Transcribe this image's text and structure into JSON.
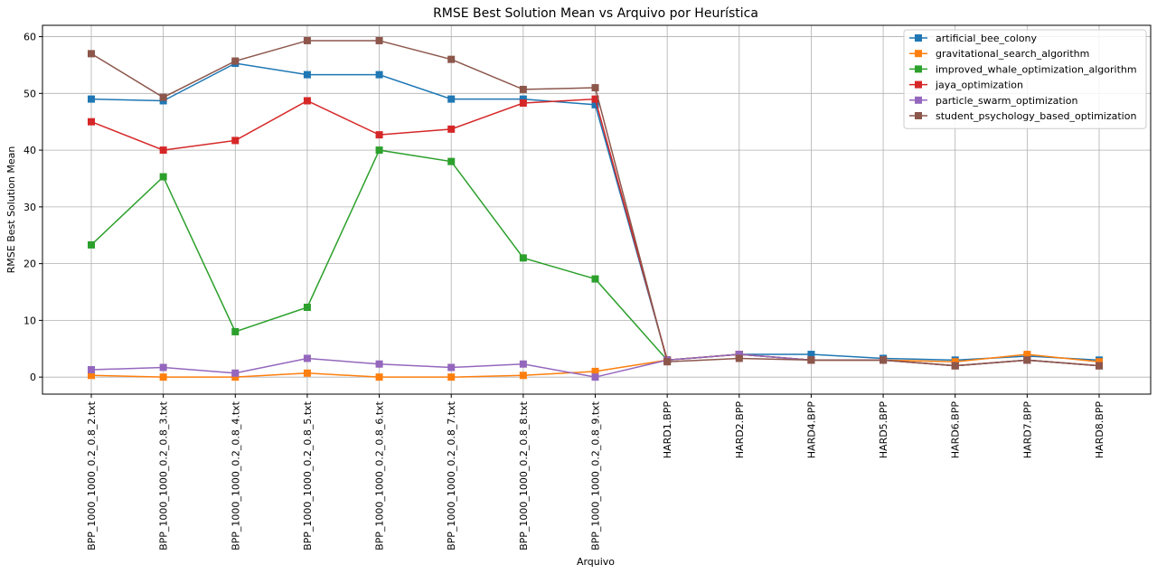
{
  "chart_data": {
    "type": "line",
    "title": "RMSE Best Solution Mean vs Arquivo por Heurística",
    "xlabel": "Arquivo",
    "ylabel": "RMSE Best Solution Mean",
    "ylim": [
      -3,
      62
    ],
    "yticks": [
      0,
      10,
      20,
      30,
      40,
      50,
      60
    ],
    "grid": true,
    "legend_position": "top-right",
    "categories": [
      "BPP_1000_1000_0.2_0.8_2.txt",
      "BPP_1000_1000_0.2_0.8_3.txt",
      "BPP_1000_1000_0.2_0.8_4.txt",
      "BPP_1000_1000_0.2_0.8_5.txt",
      "BPP_1000_1000_0.2_0.8_6.txt",
      "BPP_1000_1000_0.2_0.8_7.txt",
      "BPP_1000_1000_0.2_0.8_8.txt",
      "BPP_1000_1000_0.2_0.8_9.txt",
      "HARD1.BPP",
      "HARD2.BPP",
      "HARD4.BPP",
      "HARD5.BPP",
      "HARD6.BPP",
      "HARD7.BPP",
      "HARD8.BPP"
    ],
    "series": [
      {
        "name": "artificial_bee_colony",
        "color": "#1f77b4",
        "values": [
          49.0,
          48.7,
          55.3,
          53.3,
          53.3,
          49.0,
          49.0,
          48.0,
          3.0,
          4.0,
          4.0,
          3.3,
          3.0,
          3.7,
          3.0
        ]
      },
      {
        "name": "gravitational_search_algorithm",
        "color": "#ff7f0e",
        "values": [
          0.3,
          0.0,
          0.0,
          0.7,
          0.0,
          0.0,
          0.3,
          1.0,
          3.0,
          4.0,
          3.0,
          3.0,
          2.7,
          4.0,
          2.7
        ]
      },
      {
        "name": "improved_whale_optimization_algorithm",
        "color": "#2ca02c",
        "values": [
          23.3,
          35.3,
          8.0,
          12.3,
          40.0,
          38.0,
          21.0,
          17.3,
          3.0,
          4.0,
          3.0,
          3.0,
          2.0,
          3.0,
          2.0
        ]
      },
      {
        "name": "jaya_optimization",
        "color": "#d62728",
        "values": [
          45.0,
          40.0,
          41.7,
          48.7,
          42.7,
          43.7,
          48.3,
          49.0,
          3.0,
          4.0,
          3.0,
          3.0,
          2.0,
          3.0,
          2.0
        ]
      },
      {
        "name": "particle_swarm_optimization",
        "color": "#9467bd",
        "values": [
          1.3,
          1.7,
          0.7,
          3.3,
          2.3,
          1.7,
          2.3,
          0.0,
          3.0,
          4.0,
          3.0,
          3.0,
          2.0,
          3.0,
          2.0
        ]
      },
      {
        "name": "student_psychology_based_optimization",
        "color": "#8c564b",
        "values": [
          57.0,
          49.3,
          55.7,
          59.3,
          59.3,
          56.0,
          50.7,
          51.0,
          2.7,
          3.3,
          3.0,
          3.0,
          2.0,
          3.0,
          2.0
        ]
      }
    ]
  }
}
